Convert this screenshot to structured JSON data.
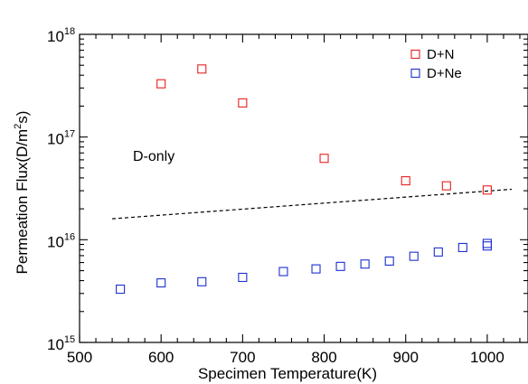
{
  "chart_data": {
    "type": "scatter",
    "title": "",
    "xlabel": "Specimen Temperature(K)",
    "ylabel_main": "Permeation Flux(D/m",
    "ylabel_sup": "2",
    "ylabel_end": "s)",
    "xlim": [
      500,
      1050
    ],
    "ylim": [
      1000000000000000.0,
      1e+18
    ],
    "y_scale": "log",
    "x_ticks": [
      500,
      600,
      700,
      800,
      900,
      1000
    ],
    "x_tick_labels": [
      "500",
      "600",
      "700",
      "800",
      "900",
      "1000"
    ],
    "y_ticks": [
      1000000000000000.0,
      1e+16,
      1e+17,
      1e+18
    ],
    "y_tick_base": [
      "10",
      "10",
      "10",
      "10"
    ],
    "y_tick_exp": [
      "15",
      "16",
      "17",
      "18"
    ],
    "grid": false,
    "legend_position": "top-right",
    "series": [
      {
        "name": "D+N",
        "color": "#e8201e",
        "marker": "open-square",
        "x": [
          600,
          650,
          700,
          800,
          900,
          950,
          1000
        ],
        "y": [
          3.3e+17,
          4.6e+17,
          2.15e+17,
          6.2e+16,
          3.75e+16,
          3.35e+16,
          3.05e+16
        ]
      },
      {
        "name": "D+Ne",
        "color": "#1c2fd0",
        "marker": "open-square",
        "x": [
          550,
          600,
          650,
          700,
          750,
          790,
          820,
          850,
          880,
          910,
          940,
          970,
          1000,
          1000
        ],
        "y": [
          3300000000000000.0,
          3800000000000000.0,
          3900000000000000.0,
          4300000000000000.0,
          4900000000000000.0,
          5200000000000000.0,
          5500000000000000.0,
          5800000000000000.0,
          6200000000000000.0,
          6900000000000000.0,
          7600000000000000.0,
          8400000000000000.0,
          8700000000000000.0,
          9200000000000000.0
        ]
      }
    ],
    "reference_line": {
      "label": "D-only",
      "style": "dashed",
      "color": "#000000",
      "x": [
        540,
        1030
      ],
      "y": [
        1.6e+16,
        3.1e+16
      ]
    }
  }
}
